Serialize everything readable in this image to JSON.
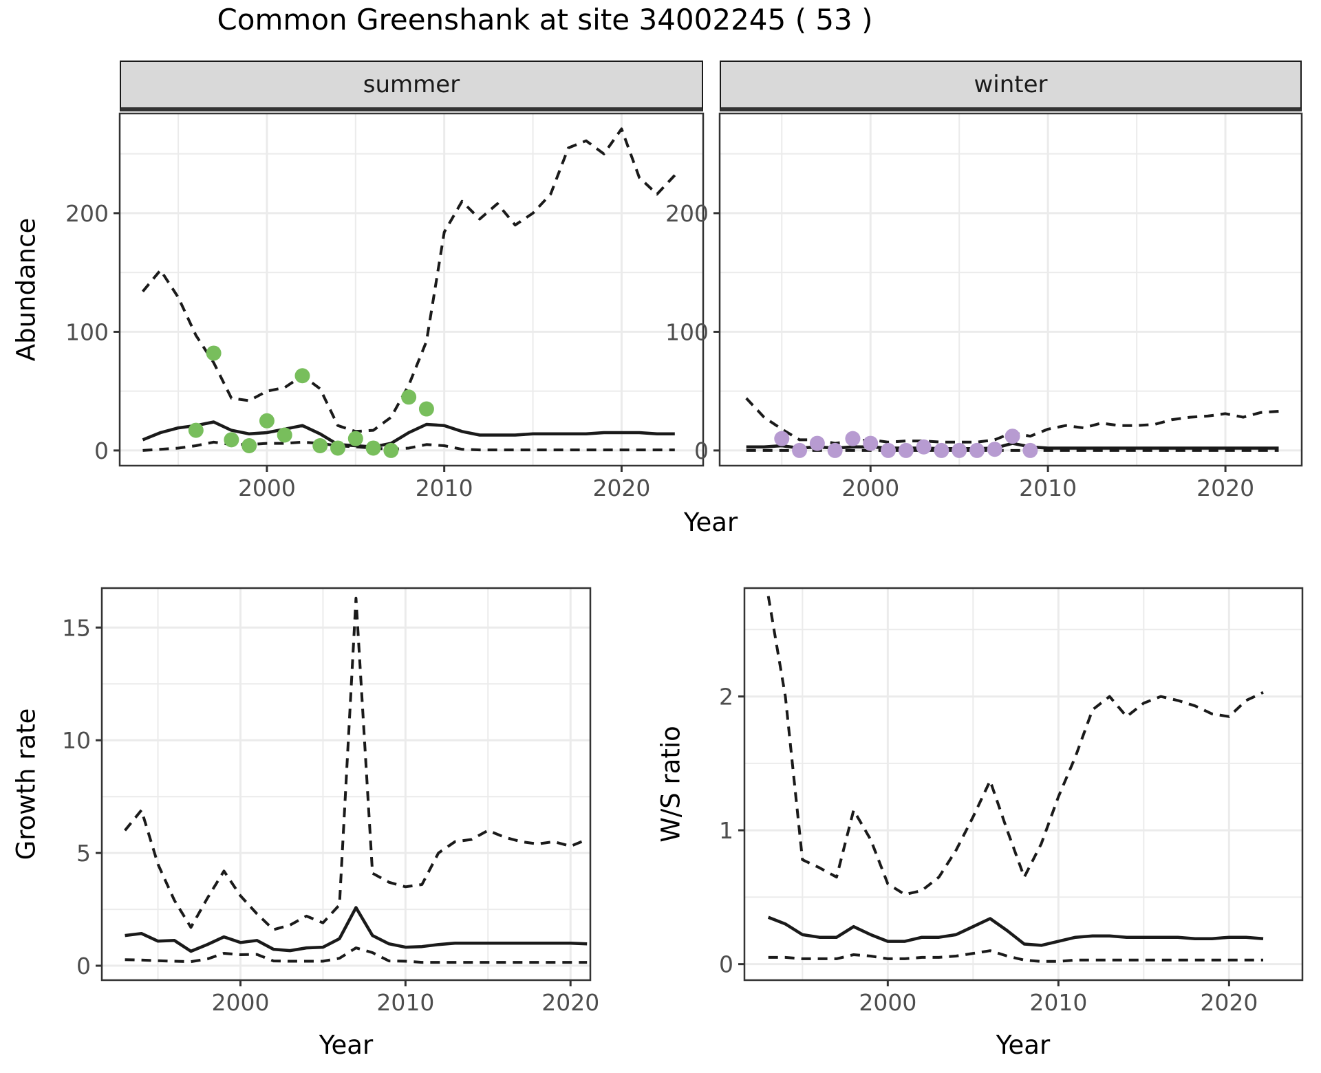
{
  "title": "Common Greenshank at site 34002245 ( 53 )",
  "facets": [
    "summer",
    "winter"
  ],
  "axis_labels": {
    "abundance": "Abundance",
    "growth": "Growth rate",
    "ws": "W/S ratio",
    "year_top": "Year",
    "year_bottom_left": "Year",
    "year_bottom_right": "Year"
  },
  "colors": {
    "summer_points": "#78be5c",
    "winter_points": "#b79bd1",
    "line": "#1a1a1a",
    "grid_major": "#ebebeb",
    "grid_minor": "#ebebeb",
    "panel_border": "#333333",
    "tick_label": "#4d4d4d",
    "strip_bg": "#d9d9d9"
  },
  "chart_data": [
    {
      "id": "summer",
      "type": "line",
      "facet": "summer",
      "xlabel": "Year",
      "ylabel": "Abundance",
      "xlim": [
        1991.7,
        2024.6
      ],
      "ylim": [
        -12.8,
        284
      ],
      "x_ticks": [
        2000,
        2010,
        2020
      ],
      "x_minor": [
        1995,
        2005,
        2015
      ],
      "y_ticks": [
        0,
        100,
        200
      ],
      "y_minor": [
        50,
        150,
        250
      ],
      "grid": true,
      "legend": "none",
      "series": [
        {
          "name": "upper_ci",
          "style": "dashed",
          "x": [
            1993,
            1994,
            1995,
            1996,
            1997,
            1998,
            1999,
            2000,
            2001,
            2002,
            2003,
            2004,
            2005,
            2006,
            2007,
            2008,
            2009,
            2010,
            2011,
            2012,
            2013,
            2014,
            2015,
            2016,
            2017,
            2018,
            2019,
            2020,
            2021,
            2022,
            2023
          ],
          "y": [
            134,
            152,
            129,
            97,
            74,
            44,
            42,
            50,
            53,
            63,
            52,
            21,
            16,
            17,
            28,
            55,
            92,
            184,
            210,
            195,
            208,
            190,
            200,
            216,
            255,
            261,
            250,
            271,
            230,
            216,
            232
          ]
        },
        {
          "name": "median",
          "style": "solid",
          "x": [
            1993,
            1994,
            1995,
            1996,
            1997,
            1998,
            1999,
            2000,
            2001,
            2002,
            2003,
            2004,
            2005,
            2006,
            2007,
            2008,
            2009,
            2010,
            2011,
            2012,
            2013,
            2014,
            2015,
            2016,
            2017,
            2018,
            2019,
            2020,
            2021,
            2022,
            2023
          ],
          "y": [
            9,
            15,
            19,
            21,
            24,
            17,
            14,
            15,
            18,
            21,
            14,
            5,
            4,
            3,
            6,
            15,
            22,
            21,
            16,
            13,
            13,
            13,
            14,
            14,
            14,
            14,
            15,
            15,
            15,
            14,
            14
          ]
        },
        {
          "name": "lower_ci",
          "style": "dashed",
          "x": [
            1993,
            1994,
            1995,
            1996,
            1997,
            1998,
            1999,
            2000,
            2001,
            2002,
            2003,
            2004,
            2005,
            2006,
            2007,
            2008,
            2009,
            2010,
            2011,
            2012,
            2013,
            2014,
            2015,
            2016,
            2017,
            2018,
            2019,
            2020,
            2021,
            2022,
            2023
          ],
          "y": [
            0,
            1,
            2,
            4,
            7,
            5,
            5,
            6,
            6,
            7,
            6,
            4,
            3,
            2,
            1,
            2,
            5,
            4,
            1,
            0.5,
            0.5,
            0.5,
            0.5,
            0.5,
            0.5,
            0.5,
            0.5,
            0.5,
            0.5,
            0.5,
            0.5
          ]
        },
        {
          "name": "observations",
          "style": "points",
          "color": "#78be5c",
          "x": [
            1996,
            1997,
            1998,
            1999,
            2000,
            2001,
            2002,
            2003,
            2004,
            2005,
            2006,
            2007,
            2008,
            2009
          ],
          "y": [
            17,
            82,
            9,
            4,
            25,
            13,
            63,
            4,
            2,
            10,
            2,
            0,
            45,
            35
          ]
        }
      ]
    },
    {
      "id": "winter",
      "type": "line",
      "facet": "winter",
      "xlabel": "Year",
      "ylabel": "Abundance",
      "xlim": [
        1991.5,
        2024.3
      ],
      "ylim": [
        -12.8,
        284
      ],
      "x_ticks": [
        2000,
        2010,
        2020
      ],
      "x_minor": [
        1995,
        2005,
        2015
      ],
      "y_ticks": [
        0,
        100,
        200
      ],
      "y_minor": [
        50,
        150,
        250
      ],
      "grid": true,
      "legend": "none",
      "series": [
        {
          "name": "upper_ci",
          "style": "dashed",
          "x": [
            1993,
            1994,
            1995,
            1996,
            1997,
            1998,
            1999,
            2000,
            2001,
            2002,
            2003,
            2004,
            2005,
            2006,
            2007,
            2008,
            2009,
            2010,
            2011,
            2012,
            2013,
            2014,
            2015,
            2016,
            2017,
            2018,
            2019,
            2020,
            2021,
            2022,
            2023
          ],
          "y": [
            44,
            28,
            18,
            9,
            9,
            6,
            8,
            9,
            7,
            8,
            8,
            7,
            7,
            7,
            9,
            15,
            12,
            18,
            21,
            19,
            23,
            21,
            21,
            22,
            26,
            28,
            29,
            31,
            28,
            32,
            33
          ]
        },
        {
          "name": "median",
          "style": "solid",
          "x": [
            1993,
            1994,
            1995,
            1996,
            1997,
            1998,
            1999,
            2000,
            2001,
            2002,
            2003,
            2004,
            2005,
            2006,
            2007,
            2008,
            2009,
            2010,
            2011,
            2012,
            2013,
            2014,
            2015,
            2016,
            2017,
            2018,
            2019,
            2020,
            2021,
            2022,
            2023
          ],
          "y": [
            3,
            3,
            4,
            2,
            3,
            2,
            3,
            3,
            2,
            2,
            2,
            1.5,
            1.5,
            1.5,
            2,
            6,
            3,
            2,
            2,
            2,
            2,
            2,
            2,
            2,
            2,
            2,
            2,
            2,
            2,
            2,
            2
          ]
        },
        {
          "name": "lower_ci",
          "style": "dashed",
          "x": [
            1993,
            1994,
            1995,
            1996,
            1997,
            1998,
            1999,
            2000,
            2001,
            2002,
            2003,
            2004,
            2005,
            2006,
            2007,
            2008,
            2009,
            2010,
            2011,
            2012,
            2013,
            2014,
            2015,
            2016,
            2017,
            2018,
            2019,
            2020,
            2021,
            2022,
            2023
          ],
          "y": [
            0,
            0,
            0,
            0,
            0,
            0,
            0,
            0,
            0,
            0,
            0,
            0,
            0,
            0,
            0,
            0,
            0,
            0,
            0,
            0,
            0,
            0,
            0,
            0,
            0,
            0,
            0,
            0,
            0,
            0,
            0
          ]
        },
        {
          "name": "observations",
          "style": "points",
          "color": "#b79bd1",
          "x": [
            1995,
            1996,
            1997,
            1998,
            1999,
            2000,
            2001,
            2002,
            2003,
            2004,
            2005,
            2006,
            2007,
            2008,
            2009
          ],
          "y": [
            10,
            0,
            6,
            0,
            10,
            6,
            0,
            0,
            3,
            0,
            0,
            0,
            1,
            12,
            0
          ]
        }
      ]
    },
    {
      "id": "growth",
      "type": "line",
      "facet": "",
      "xlabel": "Year",
      "ylabel": "Growth rate",
      "xlim": [
        1991.6,
        2021.2
      ],
      "ylim": [
        -0.64,
        16.75
      ],
      "x_ticks": [
        2000,
        2010,
        2020
      ],
      "x_minor": [
        1995,
        2005,
        2015
      ],
      "y_ticks": [
        0,
        5,
        10,
        15
      ],
      "y_minor": [
        2.5,
        7.5,
        12.5
      ],
      "grid": true,
      "legend": "none",
      "series": [
        {
          "name": "upper_ci",
          "style": "dashed",
          "x": [
            1993,
            1994,
            1995,
            1996,
            1997,
            1998,
            1999,
            2000,
            2001,
            2002,
            2003,
            2004,
            2005,
            2006,
            2007,
            2008,
            2009,
            2010,
            2011,
            2012,
            2013,
            2014,
            2015,
            2016,
            2017,
            2018,
            2019,
            2020,
            2021
          ],
          "y": [
            6.0,
            6.9,
            4.5,
            2.9,
            1.7,
            3.0,
            4.2,
            3.1,
            2.3,
            1.6,
            1.8,
            2.2,
            1.9,
            2.7,
            16.3,
            4.1,
            3.7,
            3.5,
            3.6,
            5.0,
            5.5,
            5.6,
            6.0,
            5.7,
            5.5,
            5.4,
            5.5,
            5.3,
            5.6
          ]
        },
        {
          "name": "median",
          "style": "solid",
          "x": [
            1993,
            1994,
            1995,
            1996,
            1997,
            1998,
            1999,
            2000,
            2001,
            2002,
            2003,
            2004,
            2005,
            2006,
            2007,
            2008,
            2009,
            2010,
            2011,
            2012,
            2013,
            2014,
            2015,
            2016,
            2017,
            2018,
            2019,
            2020,
            2021
          ],
          "y": [
            1.34,
            1.43,
            1.09,
            1.12,
            0.64,
            0.94,
            1.28,
            1.03,
            1.12,
            0.73,
            0.67,
            0.79,
            0.82,
            1.2,
            2.58,
            1.34,
            0.97,
            0.82,
            0.85,
            0.94,
            1.0,
            1.0,
            1.0,
            1.0,
            1.0,
            1.0,
            1.0,
            1.0,
            0.97
          ]
        },
        {
          "name": "lower_ci",
          "style": "dashed",
          "x": [
            1993,
            1994,
            1995,
            1996,
            1997,
            1998,
            1999,
            2000,
            2001,
            2002,
            2003,
            2004,
            2005,
            2006,
            2007,
            2008,
            2009,
            2010,
            2011,
            2012,
            2013,
            2014,
            2015,
            2016,
            2017,
            2018,
            2019,
            2020,
            2021
          ],
          "y": [
            0.27,
            0.25,
            0.22,
            0.2,
            0.18,
            0.3,
            0.55,
            0.49,
            0.5,
            0.21,
            0.2,
            0.2,
            0.2,
            0.33,
            0.79,
            0.58,
            0.21,
            0.2,
            0.15,
            0.15,
            0.15,
            0.15,
            0.15,
            0.15,
            0.15,
            0.15,
            0.15,
            0.15,
            0.15
          ]
        }
      ]
    },
    {
      "id": "ws",
      "type": "line",
      "facet": "",
      "xlabel": "Year",
      "ylabel": "W/S ratio",
      "xlim": [
        1991.6,
        2024.3
      ],
      "ylim": [
        -0.12,
        2.81
      ],
      "x_ticks": [
        2000,
        2010,
        2020
      ],
      "x_minor": [
        1995,
        2005,
        2015
      ],
      "y_ticks": [
        0,
        1,
        2
      ],
      "y_minor": [
        0.5,
        1.5,
        2.5
      ],
      "grid": true,
      "legend": "none",
      "series": [
        {
          "name": "upper_ci",
          "style": "dashed",
          "x": [
            1993,
            1994,
            1995,
            1996,
            1997,
            1998,
            1999,
            2000,
            2001,
            2002,
            2003,
            2004,
            2005,
            2006,
            2007,
            2008,
            2009,
            2010,
            2011,
            2012,
            2013,
            2014,
            2015,
            2016,
            2017,
            2018,
            2019,
            2020,
            2021,
            2022
          ],
          "y": [
            2.75,
            2.0,
            0.78,
            0.72,
            0.65,
            1.15,
            0.93,
            0.6,
            0.52,
            0.55,
            0.65,
            0.85,
            1.1,
            1.37,
            1.0,
            0.65,
            0.9,
            1.25,
            1.55,
            1.9,
            2.0,
            1.85,
            1.95,
            2.0,
            1.97,
            1.93,
            1.87,
            1.85,
            1.97,
            2.03
          ]
        },
        {
          "name": "median",
          "style": "solid",
          "x": [
            1993,
            1994,
            1995,
            1996,
            1997,
            1998,
            1999,
            2000,
            2001,
            2002,
            2003,
            2004,
            2005,
            2006,
            2007,
            2008,
            2009,
            2010,
            2011,
            2012,
            2013,
            2014,
            2015,
            2016,
            2017,
            2018,
            2019,
            2020,
            2021,
            2022
          ],
          "y": [
            0.35,
            0.3,
            0.22,
            0.2,
            0.2,
            0.28,
            0.22,
            0.17,
            0.17,
            0.2,
            0.2,
            0.22,
            0.28,
            0.34,
            0.25,
            0.15,
            0.14,
            0.17,
            0.2,
            0.21,
            0.21,
            0.2,
            0.2,
            0.2,
            0.2,
            0.19,
            0.19,
            0.2,
            0.2,
            0.19
          ]
        },
        {
          "name": "lower_ci",
          "style": "dashed",
          "x": [
            1993,
            1994,
            1995,
            1996,
            1997,
            1998,
            1999,
            2000,
            2001,
            2002,
            2003,
            2004,
            2005,
            2006,
            2007,
            2008,
            2009,
            2010,
            2011,
            2012,
            2013,
            2014,
            2015,
            2016,
            2017,
            2018,
            2019,
            2020,
            2021,
            2022
          ],
          "y": [
            0.05,
            0.05,
            0.04,
            0.04,
            0.04,
            0.07,
            0.06,
            0.04,
            0.04,
            0.05,
            0.05,
            0.06,
            0.08,
            0.1,
            0.06,
            0.03,
            0.02,
            0.02,
            0.03,
            0.03,
            0.03,
            0.03,
            0.03,
            0.03,
            0.03,
            0.03,
            0.03,
            0.03,
            0.03,
            0.03
          ]
        }
      ]
    }
  ]
}
